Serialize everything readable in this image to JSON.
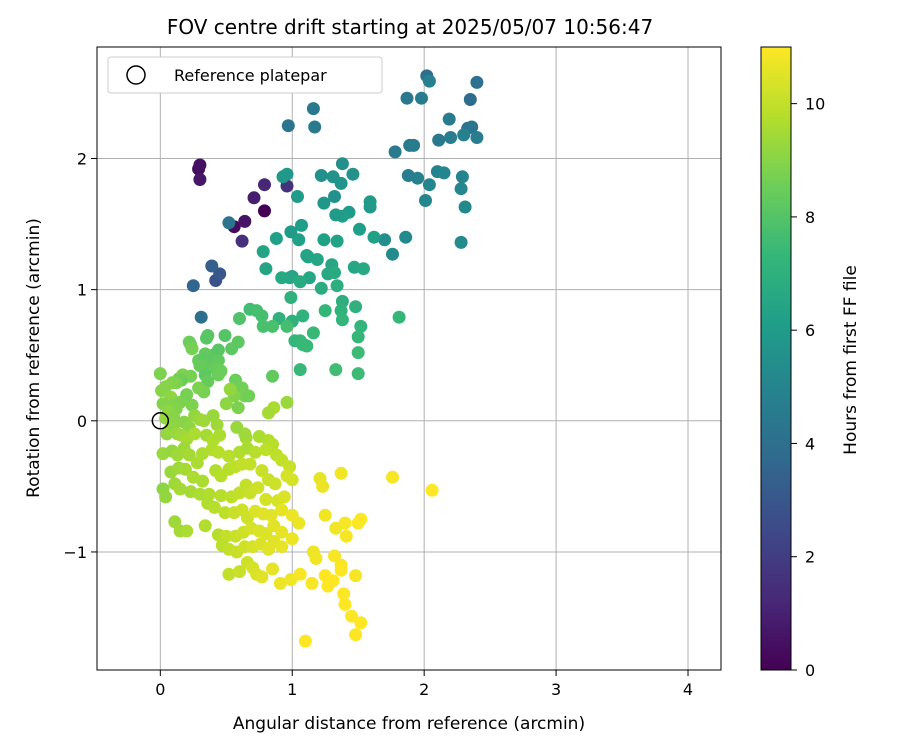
{
  "chart_data": {
    "type": "scatter",
    "title": "FOV centre drift starting at 2025/05/07 10:56:47",
    "xlabel": "Angular distance from reference (arcmin)",
    "ylabel": "Rotation from reference (arcmin)",
    "xlim": [
      -0.48,
      4.25
    ],
    "ylim": [
      -1.9,
      2.85
    ],
    "xticks": [
      0,
      1,
      2,
      3,
      4
    ],
    "xtick_labels": [
      "0",
      "1",
      "2",
      "3",
      "4"
    ],
    "yticks": [
      -1,
      0,
      1,
      2
    ],
    "ytick_labels": [
      "−1",
      "0",
      "1",
      "2"
    ],
    "grid": true,
    "legend": {
      "placement": "top-left",
      "entries": [
        "Reference platepar"
      ]
    },
    "reference_point": {
      "x": 0,
      "y": 0
    },
    "colorbar": {
      "label": "Hours from first FF file",
      "min": 0,
      "max": 11,
      "ticks": [
        0,
        2,
        4,
        6,
        8,
        10
      ],
      "tick_labels": [
        "0",
        "2",
        "4",
        "6",
        "8",
        "10"
      ],
      "colormap": "viridis",
      "colors": [
        "#440154",
        "#482878",
        "#3e4989",
        "#31688e",
        "#26828e",
        "#1f9e89",
        "#35b779",
        "#6ece58",
        "#b5de2b",
        "#fde725"
      ]
    },
    "points": [
      [
        0.29,
        1.92,
        0.4
      ],
      [
        0.3,
        1.95,
        0.5
      ],
      [
        0.3,
        1.84,
        0.7
      ],
      [
        0.79,
        1.6,
        0.0
      ],
      [
        0.56,
        1.48,
        0.3
      ],
      [
        0.64,
        1.52,
        0.6
      ],
      [
        0.71,
        1.7,
        0.9
      ],
      [
        0.79,
        1.8,
        1.2
      ],
      [
        0.62,
        1.37,
        1.5
      ],
      [
        0.96,
        1.79,
        1.6
      ],
      [
        0.42,
        1.07,
        2.8
      ],
      [
        0.45,
        1.12,
        3.0
      ],
      [
        0.39,
        1.18,
        3.3
      ],
      [
        0.25,
        1.03,
        3.6
      ],
      [
        0.31,
        0.79,
        4.0
      ],
      [
        0.52,
        1.51,
        4.2
      ],
      [
        0.97,
        2.25,
        4.3
      ],
      [
        1.16,
        2.38,
        4.4
      ],
      [
        1.17,
        2.24,
        4.5
      ],
      [
        2.02,
        2.63,
        4.0
      ],
      [
        2.4,
        2.58,
        4.1
      ],
      [
        2.35,
        2.45,
        3.9
      ],
      [
        1.87,
        2.46,
        4.4
      ],
      [
        1.98,
        2.46,
        4.6
      ],
      [
        2.04,
        2.59,
        4.8
      ],
      [
        2.33,
        2.23,
        4.2
      ],
      [
        2.36,
        2.24,
        4.3
      ],
      [
        2.19,
        2.3,
        4.6
      ],
      [
        2.11,
        2.14,
        4.4
      ],
      [
        2.2,
        2.16,
        4.7
      ],
      [
        2.4,
        2.16,
        4.7
      ],
      [
        2.3,
        2.18,
        4.8
      ],
      [
        1.78,
        2.05,
        4.5
      ],
      [
        1.89,
        2.1,
        4.5
      ],
      [
        1.92,
        2.1,
        4.6
      ],
      [
        1.88,
        1.87,
        4.7
      ],
      [
        1.95,
        1.85,
        4.8
      ],
      [
        2.1,
        1.9,
        4.9
      ],
      [
        2.15,
        1.89,
        5.0
      ],
      [
        2.29,
        1.86,
        5.0
      ],
      [
        2.28,
        1.77,
        5.1
      ],
      [
        2.04,
        1.8,
        5.0
      ],
      [
        2.01,
        1.68,
        5.1
      ],
      [
        2.31,
        1.63,
        5.2
      ],
      [
        2.28,
        1.36,
        5.3
      ],
      [
        1.86,
        1.4,
        5.2
      ],
      [
        1.76,
        1.27,
        5.3
      ],
      [
        1.7,
        1.38,
        5.4
      ],
      [
        1.38,
        1.96,
        5.5
      ],
      [
        1.46,
        1.88,
        5.6
      ],
      [
        1.31,
        1.86,
        5.6
      ],
      [
        1.22,
        1.87,
        5.5
      ],
      [
        1.37,
        1.81,
        5.7
      ],
      [
        1.32,
        1.71,
        5.5
      ],
      [
        1.24,
        1.66,
        5.8
      ],
      [
        1.59,
        1.63,
        5.9
      ],
      [
        1.59,
        1.67,
        6.0
      ],
      [
        1.43,
        1.59,
        6.0
      ],
      [
        1.38,
        1.56,
        6.1
      ],
      [
        1.33,
        1.57,
        6.0
      ],
      [
        1.51,
        1.46,
        6.1
      ],
      [
        1.62,
        1.4,
        6.2
      ],
      [
        0.93,
        1.86,
        5.8
      ],
      [
        0.96,
        1.88,
        5.9
      ],
      [
        1.04,
        1.71,
        6.0
      ],
      [
        1.07,
        1.49,
        6.1
      ],
      [
        0.99,
        1.44,
        6.0
      ],
      [
        1.05,
        1.38,
        6.2
      ],
      [
        1.24,
        1.38,
        6.2
      ],
      [
        1.34,
        1.37,
        6.3
      ],
      [
        0.88,
        1.39,
        6.2
      ],
      [
        0.78,
        1.29,
        6.4
      ],
      [
        0.8,
        1.16,
        6.4
      ],
      [
        1.11,
        1.26,
        6.3
      ],
      [
        1.12,
        1.25,
        6.4
      ],
      [
        1.19,
        1.23,
        6.5
      ],
      [
        1.3,
        1.19,
        6.5
      ],
      [
        1.47,
        1.17,
        6.5
      ],
      [
        1.54,
        1.16,
        6.6
      ],
      [
        1.0,
        1.1,
        6.4
      ],
      [
        0.98,
        1.09,
        6.5
      ],
      [
        0.92,
        1.09,
        6.6
      ],
      [
        1.13,
        1.09,
        6.5
      ],
      [
        1.27,
        1.12,
        6.6
      ],
      [
        1.32,
        1.13,
        6.7
      ],
      [
        1.06,
        1.06,
        6.7
      ],
      [
        1.22,
        1.01,
        6.8
      ],
      [
        1.34,
        1.03,
        6.9
      ],
      [
        1.38,
        0.91,
        6.9
      ],
      [
        1.48,
        0.87,
        7.0
      ],
      [
        0.99,
        0.94,
        7.0
      ],
      [
        1.0,
        0.76,
        7.0
      ],
      [
        1.08,
        0.8,
        7.1
      ],
      [
        0.9,
        0.78,
        7.0
      ],
      [
        1.37,
        0.84,
        7.1
      ],
      [
        1.38,
        0.77,
        7.2
      ],
      [
        1.52,
        0.72,
        7.2
      ],
      [
        1.81,
        0.79,
        7.3
      ],
      [
        1.25,
        0.84,
        7.3
      ],
      [
        1.5,
        0.64,
        7.3
      ],
      [
        1.16,
        0.67,
        7.4
      ],
      [
        1.06,
        0.61,
        7.4
      ],
      [
        1.02,
        0.61,
        7.3
      ],
      [
        1.09,
        0.58,
        7.5
      ],
      [
        1.11,
        0.57,
        7.4
      ],
      [
        1.08,
        0.58,
        7.4
      ],
      [
        1.5,
        0.52,
        7.5
      ],
      [
        1.5,
        0.36,
        7.5
      ],
      [
        1.33,
        0.39,
        7.6
      ],
      [
        1.06,
        0.39,
        7.4
      ],
      [
        0.68,
        0.85,
        7.6
      ],
      [
        0.73,
        0.84,
        7.7
      ],
      [
        0.77,
        0.8,
        7.7
      ],
      [
        0.85,
        0.72,
        7.8
      ],
      [
        0.96,
        0.72,
        7.7
      ],
      [
        0.78,
        0.72,
        7.8
      ],
      [
        0.6,
        0.78,
        7.9
      ],
      [
        0.49,
        0.65,
        8.0
      ],
      [
        0.36,
        0.65,
        8.1
      ],
      [
        0.35,
        0.63,
        8.1
      ],
      [
        0.59,
        0.6,
        8.2
      ],
      [
        0.54,
        0.55,
        8.2
      ],
      [
        0.44,
        0.54,
        8.1
      ],
      [
        0.4,
        0.5,
        8.1
      ],
      [
        0.34,
        0.51,
        8.3
      ],
      [
        0.23,
        0.58,
        8.6
      ],
      [
        0.22,
        0.6,
        8.5
      ],
      [
        0.24,
        0.55,
        8.7
      ],
      [
        0.29,
        0.46,
        8.4
      ],
      [
        0.33,
        0.47,
        8.2
      ],
      [
        0.37,
        0.44,
        8.3
      ],
      [
        0.41,
        0.47,
        8.2
      ],
      [
        0.44,
        0.46,
        8.3
      ],
      [
        0.3,
        0.42,
        8.4
      ],
      [
        0.42,
        0.4,
        8.4
      ],
      [
        0.46,
        0.38,
        8.5
      ],
      [
        0.34,
        0.35,
        8.2
      ],
      [
        0.36,
        0.3,
        8.4
      ],
      [
        0.44,
        0.35,
        8.5
      ],
      [
        0.85,
        0.34,
        8.3
      ],
      [
        0.57,
        0.31,
        8.5
      ],
      [
        0.62,
        0.25,
        8.6
      ],
      [
        0.64,
        0.19,
        8.7
      ],
      [
        0.67,
        0.19,
        8.6
      ],
      [
        0.56,
        0.19,
        8.9
      ],
      [
        0.53,
        0.24,
        9.2
      ],
      [
        0.5,
        0.13,
        9.1
      ],
      [
        0.96,
        0.14,
        9.3
      ],
      [
        0.86,
        0.1,
        9.6
      ],
      [
        0.82,
        0.06,
        9.5
      ],
      [
        0.59,
        0.1,
        8.8
      ],
      [
        0.23,
        0.34,
        8.7
      ],
      [
        0.18,
        0.33,
        8.7
      ],
      [
        0.14,
        0.32,
        8.6
      ],
      [
        0.17,
        0.35,
        8.8
      ],
      [
        0.16,
        0.31,
        8.5
      ],
      [
        0.12,
        0.29,
        8.8
      ],
      [
        0.09,
        0.29,
        8.9
      ],
      [
        0.04,
        0.26,
        9.0
      ],
      [
        0.01,
        0.23,
        9.0
      ],
      [
        0.0,
        0.36,
        8.8
      ],
      [
        0.08,
        0.18,
        9.1
      ],
      [
        0.02,
        0.13,
        8.9
      ],
      [
        0.1,
        0.12,
        8.9
      ],
      [
        0.24,
        0.12,
        8.8
      ],
      [
        0.33,
        0.22,
        8.7
      ],
      [
        0.29,
        0.25,
        8.8
      ],
      [
        0.2,
        0.2,
        8.7
      ],
      [
        0.15,
        0.14,
        8.8
      ],
      [
        0.12,
        0.09,
        8.9
      ],
      [
        0.06,
        0.07,
        9.1
      ],
      [
        0.04,
        0.02,
        9.2
      ],
      [
        0.1,
        0.03,
        9.0
      ],
      [
        0.18,
        -0.01,
        9.0
      ],
      [
        0.22,
        -0.05,
        9.1
      ],
      [
        0.26,
        0.04,
        9.2
      ],
      [
        0.3,
        0.01,
        9.3
      ],
      [
        0.33,
        0.0,
        9.4
      ],
      [
        0.4,
        0.04,
        9.3
      ],
      [
        0.43,
        -0.03,
        9.4
      ],
      [
        0.05,
        -0.1,
        9.2
      ],
      [
        0.07,
        -0.07,
        9.3
      ],
      [
        0.1,
        -0.04,
        9.1
      ],
      [
        0.13,
        -0.1,
        9.3
      ],
      [
        0.16,
        -0.11,
        9.4
      ],
      [
        0.2,
        -0.14,
        9.5
      ],
      [
        0.26,
        -0.1,
        9.6
      ],
      [
        0.35,
        -0.11,
        9.5
      ],
      [
        0.4,
        -0.15,
        9.7
      ],
      [
        0.45,
        -0.11,
        9.6
      ],
      [
        0.58,
        -0.05,
        9.3
      ],
      [
        0.65,
        -0.13,
        9.5
      ],
      [
        0.64,
        -0.1,
        9.4
      ],
      [
        0.75,
        -0.12,
        9.6
      ],
      [
        0.82,
        -0.15,
        9.7
      ],
      [
        0.85,
        -0.18,
        9.8
      ],
      [
        0.02,
        -0.25,
        9.3
      ],
      [
        0.09,
        -0.23,
        9.2
      ],
      [
        0.13,
        -0.26,
        9.4
      ],
      [
        0.18,
        -0.21,
        9.4
      ],
      [
        0.22,
        -0.26,
        9.5
      ],
      [
        0.28,
        -0.32,
        9.6
      ],
      [
        0.32,
        -0.25,
        9.6
      ],
      [
        0.39,
        -0.22,
        9.7
      ],
      [
        0.44,
        -0.24,
        9.8
      ],
      [
        0.52,
        -0.27,
        9.8
      ],
      [
        0.6,
        -0.24,
        9.7
      ],
      [
        0.66,
        -0.21,
        9.6
      ],
      [
        0.72,
        -0.24,
        9.8
      ],
      [
        0.8,
        -0.22,
        9.9
      ],
      [
        0.88,
        -0.26,
        9.9
      ],
      [
        0.92,
        -0.3,
        10.0
      ],
      [
        0.98,
        -0.35,
        10.1
      ],
      [
        0.08,
        -0.39,
        9.3
      ],
      [
        0.14,
        -0.36,
        9.4
      ],
      [
        0.19,
        -0.37,
        9.5
      ],
      [
        0.25,
        -0.43,
        9.6
      ],
      [
        0.32,
        -0.46,
        9.6
      ],
      [
        0.42,
        -0.38,
        9.7
      ],
      [
        0.46,
        -0.42,
        9.8
      ],
      [
        0.52,
        -0.37,
        9.8
      ],
      [
        0.57,
        -0.35,
        9.9
      ],
      [
        0.62,
        -0.33,
        10.0
      ],
      [
        0.68,
        -0.33,
        10.0
      ],
      [
        0.77,
        -0.38,
        10.1
      ],
      [
        0.82,
        -0.45,
        10.1
      ],
      [
        0.87,
        -0.48,
        10.2
      ],
      [
        0.96,
        -0.42,
        10.3
      ],
      [
        1.0,
        -0.45,
        10.3
      ],
      [
        1.21,
        -0.44,
        10.6
      ],
      [
        1.23,
        -0.5,
        10.7
      ],
      [
        1.37,
        -0.4,
        10.8
      ],
      [
        1.76,
        -0.43,
        10.9
      ],
      [
        2.06,
        -0.53,
        11.0
      ],
      [
        0.11,
        -0.48,
        9.4
      ],
      [
        0.15,
        -0.52,
        9.5
      ],
      [
        0.23,
        -0.54,
        9.5
      ],
      [
        0.3,
        -0.56,
        9.6
      ],
      [
        0.37,
        -0.56,
        9.7
      ],
      [
        0.46,
        -0.57,
        9.8
      ],
      [
        0.54,
        -0.58,
        9.9
      ],
      [
        0.6,
        -0.55,
        10.0
      ],
      [
        0.65,
        -0.49,
        10.0
      ],
      [
        0.68,
        -0.55,
        10.1
      ],
      [
        0.74,
        -0.51,
        10.2
      ],
      [
        0.8,
        -0.6,
        10.3
      ],
      [
        0.89,
        -0.61,
        10.3
      ],
      [
        0.94,
        -0.58,
        10.4
      ],
      [
        0.02,
        -0.52,
        9.1
      ],
      [
        0.04,
        -0.58,
        9.2
      ],
      [
        0.36,
        -0.63,
        9.7
      ],
      [
        0.41,
        -0.66,
        9.8
      ],
      [
        0.49,
        -0.7,
        9.9
      ],
      [
        0.56,
        -0.7,
        10.1
      ],
      [
        0.62,
        -0.68,
        10.2
      ],
      [
        0.66,
        -0.74,
        10.2
      ],
      [
        0.72,
        -0.69,
        10.4
      ],
      [
        0.78,
        -0.71,
        10.5
      ],
      [
        0.84,
        -0.72,
        10.5
      ],
      [
        0.92,
        -0.68,
        10.6
      ],
      [
        1.0,
        -0.72,
        10.7
      ],
      [
        1.05,
        -0.78,
        10.7
      ],
      [
        1.25,
        -0.72,
        10.8
      ],
      [
        1.4,
        -0.78,
        10.9
      ],
      [
        1.52,
        -0.75,
        11.0
      ],
      [
        1.5,
        -0.78,
        11.0
      ],
      [
        0.11,
        -0.77,
        9.4
      ],
      [
        0.15,
        -0.84,
        9.5
      ],
      [
        0.2,
        -0.84,
        9.6
      ],
      [
        0.34,
        -0.8,
        9.7
      ],
      [
        0.44,
        -0.87,
        9.8
      ],
      [
        0.5,
        -0.88,
        10.0
      ],
      [
        0.57,
        -0.88,
        10.1
      ],
      [
        0.63,
        -0.85,
        10.2
      ],
      [
        0.69,
        -0.82,
        10.3
      ],
      [
        0.75,
        -0.84,
        10.4
      ],
      [
        0.8,
        -0.86,
        10.4
      ],
      [
        0.86,
        -0.8,
        10.5
      ],
      [
        0.92,
        -0.85,
        10.6
      ],
      [
        1.0,
        -0.9,
        10.7
      ],
      [
        1.33,
        -0.82,
        10.8
      ],
      [
        1.41,
        -0.88,
        10.9
      ],
      [
        0.47,
        -0.95,
        9.9
      ],
      [
        0.52,
        -0.98,
        10.0
      ],
      [
        0.58,
        -1.0,
        10.1
      ],
      [
        0.64,
        -0.96,
        10.2
      ],
      [
        0.7,
        -0.96,
        10.3
      ],
      [
        0.76,
        -0.94,
        10.4
      ],
      [
        0.82,
        -0.98,
        10.5
      ],
      [
        0.86,
        -0.92,
        10.5
      ],
      [
        0.92,
        -0.96,
        10.6
      ],
      [
        1.16,
        -1.0,
        10.7
      ],
      [
        1.18,
        -1.05,
        10.8
      ],
      [
        1.32,
        -1.03,
        10.9
      ],
      [
        0.52,
        -1.17,
        10.0
      ],
      [
        0.6,
        -1.15,
        10.1
      ],
      [
        0.66,
        -1.08,
        10.2
      ],
      [
        0.7,
        -1.12,
        10.3
      ],
      [
        0.73,
        -1.17,
        10.4
      ],
      [
        0.77,
        -1.19,
        10.5
      ],
      [
        0.85,
        -1.13,
        10.6
      ],
      [
        0.91,
        -1.24,
        10.7
      ],
      [
        0.99,
        -1.21,
        10.8
      ],
      [
        1.06,
        -1.17,
        10.9
      ],
      [
        1.15,
        -1.24,
        10.9
      ],
      [
        1.25,
        -1.18,
        11.0
      ],
      [
        1.31,
        -1.22,
        11.0
      ],
      [
        1.37,
        -1.1,
        10.9
      ],
      [
        1.37,
        -1.14,
        11.0
      ],
      [
        1.48,
        -1.18,
        10.9
      ],
      [
        1.27,
        -1.26,
        11.0
      ],
      [
        1.39,
        -1.32,
        11.0
      ],
      [
        1.4,
        -1.4,
        11.0
      ],
      [
        1.45,
        -1.49,
        11.0
      ],
      [
        1.52,
        -1.54,
        11.0
      ],
      [
        1.48,
        -1.63,
        11.0
      ],
      [
        1.1,
        -1.68,
        11.0
      ]
    ]
  }
}
